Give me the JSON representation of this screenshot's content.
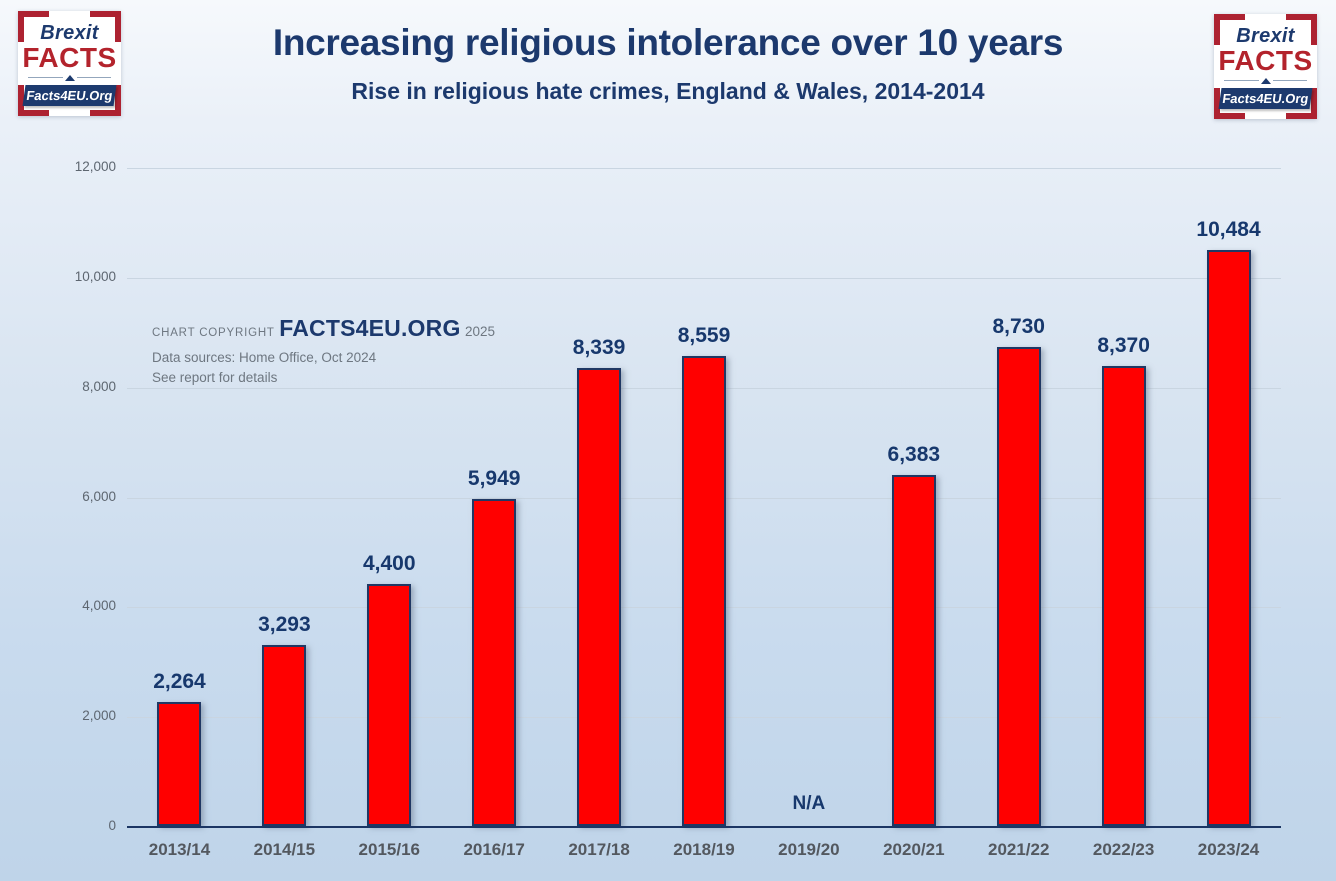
{
  "header": {
    "title": "Increasing religious intolerance over 10 years",
    "subtitle": "Rise in religious hate crimes, England & Wales, 2014-2014"
  },
  "logo": {
    "brexit": "Brexit",
    "facts": "FACTS",
    "banner": "Facts4EU.Org"
  },
  "copyright": {
    "prefix": "CHART COPYRIGHT",
    "brand": "FACTS4EU.ORG",
    "year": "2025",
    "sources": "Data sources: Home Office, Oct 2024",
    "note": "See report for details"
  },
  "chart_data": {
    "type": "bar",
    "title": "Increasing religious intolerance over 10 years",
    "subtitle": "Rise in religious hate crimes, England & Wales, 2014-2014",
    "categories": [
      "2013/14",
      "2014/15",
      "2015/16",
      "2016/17",
      "2017/18",
      "2018/19",
      "2019/20",
      "2020/21",
      "2021/22",
      "2022/23",
      "2023/24"
    ],
    "values": [
      2264,
      3293,
      4400,
      5949,
      8339,
      8559,
      null,
      6383,
      8730,
      8370,
      10484
    ],
    "value_labels": [
      "2,264",
      "3,293",
      "4,400",
      "5,949",
      "8,339",
      "8,559",
      "N/A",
      "6,383",
      "8,730",
      "8,370",
      "10,484"
    ],
    "na_label": "N/A",
    "xlabel": "",
    "ylabel": "",
    "ylim": [
      0,
      12000
    ],
    "ytick_step": 2000,
    "ytick_labels": [
      "0",
      "2,000",
      "4,000",
      "6,000",
      "8,000",
      "10,000",
      "12,000"
    ],
    "grid": true,
    "legend": false,
    "bar_color": "#ff0000",
    "bar_border_color": "#203864",
    "value_label_color": "#17386d",
    "axis_line_color": "#1b3563",
    "gridline_color": "#c9d5e1",
    "title_color": "#1c396d"
  }
}
